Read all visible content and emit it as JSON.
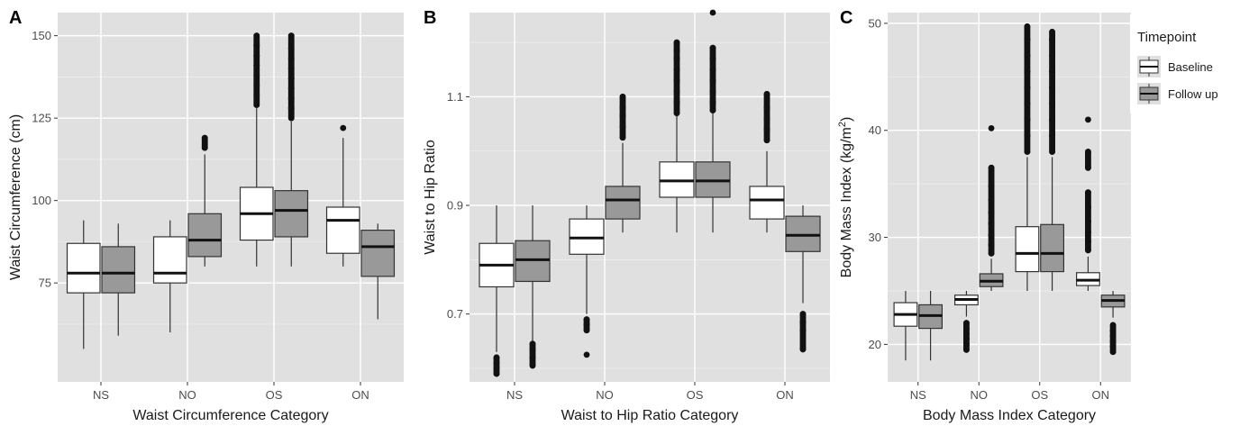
{
  "legend": {
    "title": "Timepoint",
    "entries": [
      {
        "label": "Baseline",
        "color": "#ffffff"
      },
      {
        "label": "Follow up",
        "color": "#999999"
      }
    ],
    "placement": "top-right"
  },
  "chart_data": [
    {
      "type": "boxplot",
      "panel_label": "A",
      "xlabel": "Waist Circumference Category",
      "ylabel": "Waist Circumference (cm)",
      "categories": [
        "NS",
        "NO",
        "OS",
        "ON"
      ],
      "ylim": [
        45,
        157
      ],
      "yticks": [
        75,
        100,
        125,
        150
      ],
      "series": [
        {
          "name": "Baseline",
          "color": "#ffffff",
          "boxes": [
            {
              "min": 55,
              "q1": 72,
              "median": 78,
              "q3": 87,
              "max": 94,
              "outliers": []
            },
            {
              "min": 60,
              "q1": 75,
              "median": 78,
              "q3": 89,
              "max": 94,
              "outliers": []
            },
            {
              "min": 80,
              "q1": 88,
              "median": 96,
              "q3": 104,
              "max": 128,
              "outliers": [
                129,
                132,
                135,
                138,
                141,
                144,
                147,
                150
              ]
            },
            {
              "min": 80,
              "q1": 84,
              "median": 94,
              "q3": 98,
              "max": 119,
              "outliers": [
                122
              ]
            }
          ]
        },
        {
          "name": "Follow up",
          "color": "#999999",
          "boxes": [
            {
              "min": 59,
              "q1": 72,
              "median": 78,
              "q3": 86,
              "max": 93,
              "outliers": []
            },
            {
              "min": 80,
              "q1": 83,
              "median": 88,
              "q3": 96,
              "max": 114,
              "outliers": [
                116,
                119
              ]
            },
            {
              "min": 80,
              "q1": 89,
              "median": 97,
              "q3": 103,
              "max": 124,
              "outliers": [
                125,
                128,
                131,
                134,
                137,
                140,
                143,
                146,
                150
              ]
            },
            {
              "min": 64,
              "q1": 77,
              "median": 86,
              "q3": 91,
              "max": 93,
              "outliers": []
            }
          ]
        }
      ]
    },
    {
      "type": "boxplot",
      "panel_label": "B",
      "xlabel": "Waist to Hip Ratio Category",
      "ylabel": "Waist to Hip Ratio",
      "categories": [
        "NS",
        "NO",
        "OS",
        "ON"
      ],
      "ylim": [
        0.575,
        1.255
      ],
      "yticks": [
        0.7,
        0.9,
        1.1
      ],
      "series": [
        {
          "name": "Baseline",
          "color": "#ffffff",
          "boxes": [
            {
              "min": 0.63,
              "q1": 0.75,
              "median": 0.79,
              "q3": 0.83,
              "max": 0.9,
              "outliers": [
                0.59,
                0.6,
                0.61,
                0.62
              ]
            },
            {
              "min": 0.7,
              "q1": 0.81,
              "median": 0.84,
              "q3": 0.875,
              "max": 0.9,
              "outliers": [
                0.625,
                0.67,
                0.68,
                0.69
              ]
            },
            {
              "min": 0.85,
              "q1": 0.915,
              "median": 0.945,
              "q3": 0.98,
              "max": 1.065,
              "outliers": [
                1.07,
                1.09,
                1.11,
                1.13,
                1.15,
                1.17,
                1.185,
                1.2
              ]
            },
            {
              "min": 0.85,
              "q1": 0.875,
              "median": 0.91,
              "q3": 0.935,
              "max": 1.0,
              "outliers": [
                1.02,
                1.04,
                1.06,
                1.08,
                1.105
              ]
            }
          ]
        },
        {
          "name": "Follow up",
          "color": "#999999",
          "boxes": [
            {
              "min": 0.65,
              "q1": 0.76,
              "median": 0.8,
              "q3": 0.835,
              "max": 0.9,
              "outliers": [
                0.605,
                0.62,
                0.635,
                0.645
              ]
            },
            {
              "min": 0.85,
              "q1": 0.875,
              "median": 0.91,
              "q3": 0.935,
              "max": 1.015,
              "outliers": [
                1.025,
                1.045,
                1.065,
                1.08,
                1.1
              ]
            },
            {
              "min": 0.85,
              "q1": 0.915,
              "median": 0.945,
              "q3": 0.98,
              "max": 1.07,
              "outliers": [
                1.075,
                1.09,
                1.11,
                1.13,
                1.15,
                1.17,
                1.19,
                1.255
              ]
            },
            {
              "min": 0.72,
              "q1": 0.815,
              "median": 0.845,
              "q3": 0.88,
              "max": 0.9,
              "outliers": [
                0.635,
                0.67,
                0.685,
                0.7
              ]
            }
          ]
        }
      ]
    },
    {
      "type": "boxplot",
      "panel_label": "C",
      "xlabel": "Body Mass Index Category",
      "ylabel": "Body Mass Index (kg/m",
      "ylabel_sup": "2",
      "ylabel_end": ")",
      "categories": [
        "NS",
        "NO",
        "OS",
        "ON"
      ],
      "ylim": [
        16.5,
        51
      ],
      "yticks": [
        20,
        30,
        40,
        50
      ],
      "series": [
        {
          "name": "Baseline",
          "color": "#ffffff",
          "boxes": [
            {
              "min": 18.5,
              "q1": 21.7,
              "median": 22.8,
              "q3": 23.9,
              "max": 25,
              "outliers": []
            },
            {
              "min": 22.6,
              "q1": 23.7,
              "median": 24.2,
              "q3": 24.6,
              "max": 25,
              "outliers": [
                19.5,
                20.0,
                20.5,
                21.0,
                21.5,
                22.0
              ]
            },
            {
              "min": 25,
              "q1": 26.8,
              "median": 28.5,
              "q3": 31,
              "max": 37.5,
              "outliers": [
                38,
                39.5,
                41,
                42.5,
                44,
                45.5,
                47,
                48.5,
                49.7
              ]
            },
            {
              "min": 25,
              "q1": 25.5,
              "median": 26,
              "q3": 26.7,
              "max": 28.2,
              "outliers": [
                28.8,
                29.6,
                30.5,
                31.5,
                32.8,
                34.2,
                36.5,
                38,
                41
              ]
            }
          ]
        },
        {
          "name": "Follow up",
          "color": "#999999",
          "boxes": [
            {
              "min": 18.5,
              "q1": 21.5,
              "median": 22.7,
              "q3": 23.7,
              "max": 25,
              "outliers": []
            },
            {
              "min": 25,
              "q1": 25.4,
              "median": 25.9,
              "q3": 26.6,
              "max": 28,
              "outliers": [
                28.5,
                29.3,
                30.2,
                31.3,
                32.3,
                33.5,
                34.8,
                36.5,
                40.2
              ]
            },
            {
              "min": 25,
              "q1": 26.8,
              "median": 28.5,
              "q3": 31.2,
              "max": 37.5,
              "outliers": [
                38,
                39.5,
                41,
                42.5,
                44,
                45.5,
                47,
                48.5,
                49.2
              ]
            },
            {
              "min": 22.5,
              "q1": 23.5,
              "median": 24.1,
              "q3": 24.6,
              "max": 25,
              "outliers": [
                19.3,
                19.8,
                20.3,
                20.8,
                21.3,
                21.8
              ]
            }
          ]
        }
      ]
    }
  ]
}
